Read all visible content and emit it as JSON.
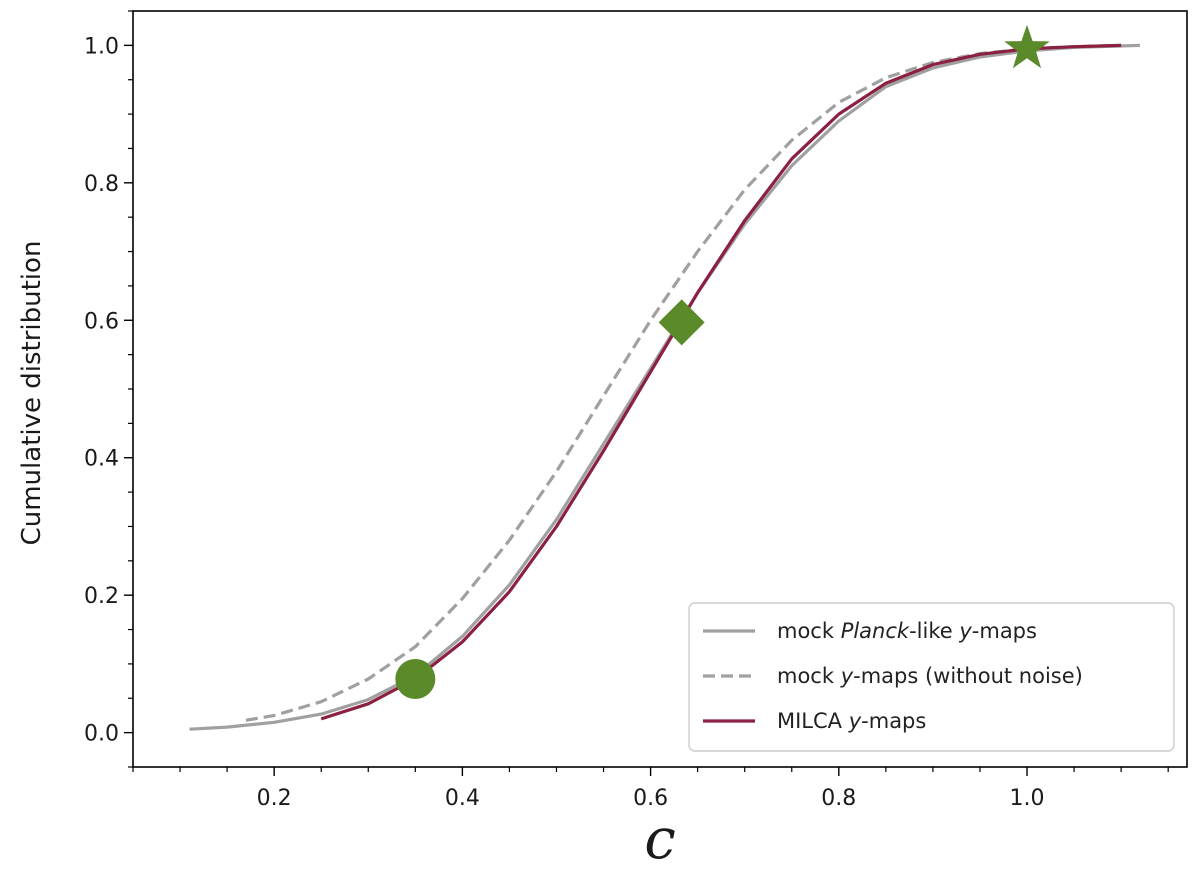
{
  "chart_data": {
    "type": "line",
    "title": "",
    "xlabel": "c",
    "ylabel": "Cumulative distribution",
    "xlim": [
      0.05,
      1.17
    ],
    "ylim": [
      -0.05,
      1.05
    ],
    "xticks": [
      0.2,
      0.4,
      0.6,
      0.8,
      1.0
    ],
    "xtick_labels": [
      "0.2",
      "0.4",
      "0.6",
      "0.8",
      "1.0"
    ],
    "x_minor_step": 0.05,
    "yticks": [
      0.0,
      0.2,
      0.4,
      0.6,
      0.8,
      1.0
    ],
    "ytick_labels": [
      "0.0",
      "0.2",
      "0.4",
      "0.6",
      "0.8",
      "1.0"
    ],
    "y_minor_step": 0.05,
    "grid": false,
    "legend_position": "bottom-right",
    "series": [
      {
        "key": "planck",
        "name_parts": [
          {
            "text": "mock ",
            "italic": false
          },
          {
            "text": "Planck",
            "italic": true
          },
          {
            "text": "-like ",
            "italic": false
          },
          {
            "text": "y",
            "italic": true
          },
          {
            "text": "-maps",
            "italic": false
          }
        ],
        "color": "#a0a0a0",
        "style": "solid",
        "x": [
          0.11,
          0.15,
          0.2,
          0.25,
          0.3,
          0.35,
          0.4,
          0.45,
          0.5,
          0.55,
          0.6,
          0.65,
          0.7,
          0.75,
          0.8,
          0.85,
          0.9,
          0.95,
          1.0,
          1.05,
          1.12
        ],
        "y": [
          0.005,
          0.008,
          0.015,
          0.027,
          0.048,
          0.083,
          0.14,
          0.215,
          0.31,
          0.42,
          0.53,
          0.64,
          0.74,
          0.825,
          0.89,
          0.94,
          0.967,
          0.983,
          0.992,
          0.997,
          1.0
        ]
      },
      {
        "key": "nonoise",
        "name_parts": [
          {
            "text": "mock ",
            "italic": false
          },
          {
            "text": "y",
            "italic": true
          },
          {
            "text": "-maps (without noise)",
            "italic": false
          }
        ],
        "color": "#a0a0a0",
        "style": "dashed",
        "x": [
          0.17,
          0.2,
          0.25,
          0.3,
          0.35,
          0.4,
          0.45,
          0.5,
          0.55,
          0.6,
          0.65,
          0.7,
          0.75,
          0.8,
          0.85,
          0.9,
          0.95,
          1.0,
          1.05,
          1.1
        ],
        "y": [
          0.018,
          0.025,
          0.045,
          0.078,
          0.125,
          0.195,
          0.28,
          0.38,
          0.49,
          0.6,
          0.7,
          0.79,
          0.862,
          0.917,
          0.953,
          0.975,
          0.988,
          0.995,
          0.998,
          1.0
        ]
      },
      {
        "key": "milca",
        "name_parts": [
          {
            "text": "MILCA ",
            "italic": false
          },
          {
            "text": "y",
            "italic": true
          },
          {
            "text": "-maps",
            "italic": false
          }
        ],
        "color": "#8b2040",
        "style": "solid",
        "x": [
          0.25,
          0.3,
          0.35,
          0.4,
          0.45,
          0.5,
          0.55,
          0.6,
          0.65,
          0.7,
          0.75,
          0.8,
          0.85,
          0.9,
          0.95,
          1.0,
          1.05,
          1.1
        ],
        "y": [
          0.02,
          0.042,
          0.078,
          0.132,
          0.205,
          0.3,
          0.41,
          0.525,
          0.64,
          0.745,
          0.835,
          0.9,
          0.945,
          0.972,
          0.987,
          0.995,
          0.998,
          1.0
        ]
      }
    ],
    "markers": [
      {
        "shape": "circle",
        "x": 0.35,
        "y": 0.078,
        "color": "#5a8a2a"
      },
      {
        "shape": "diamond",
        "x": 0.633,
        "y": 0.597,
        "color": "#5a8a2a"
      },
      {
        "shape": "star",
        "x": 1.0,
        "y": 0.995,
        "color": "#5a8a2a"
      }
    ]
  }
}
